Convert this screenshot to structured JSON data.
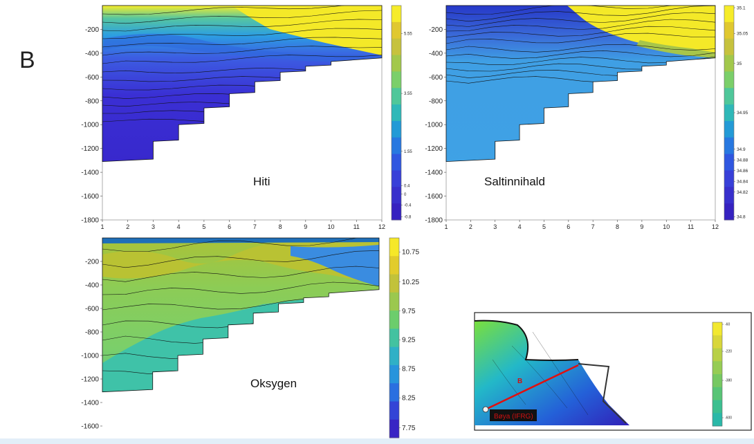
{
  "figure_label": "B",
  "chart_data": [
    {
      "type": "contour",
      "label": "Hiti",
      "x_ticks": [
        1,
        2,
        3,
        4,
        5,
        6,
        7,
        8,
        9,
        10,
        11,
        12
      ],
      "y_ticks": [
        -200,
        -400,
        -600,
        -800,
        -1000,
        -1200,
        -1400,
        -1600,
        -1800
      ],
      "xlim": [
        1,
        12
      ],
      "ylim": [
        -1800,
        0
      ],
      "bottom_depth": [
        {
          "x": 1,
          "depth": -1310
        },
        {
          "x": 3,
          "depth": -1290
        },
        {
          "x": 3,
          "depth": -1140
        },
        {
          "x": 4,
          "depth": -1130
        },
        {
          "x": 4,
          "depth": -1000
        },
        {
          "x": 5,
          "depth": -990
        },
        {
          "x": 5,
          "depth": -860
        },
        {
          "x": 6,
          "depth": -850
        },
        {
          "x": 6,
          "depth": -740
        },
        {
          "x": 7,
          "depth": -730
        },
        {
          "x": 7,
          "depth": -640
        },
        {
          "x": 8,
          "depth": -630
        },
        {
          "x": 8,
          "depth": -560
        },
        {
          "x": 9,
          "depth": -550
        },
        {
          "x": 9,
          "depth": -510
        },
        {
          "x": 10,
          "depth": -500
        },
        {
          "x": 10,
          "depth": -470
        },
        {
          "x": 12,
          "depth": -440
        }
      ],
      "colorbar_ticks": [
        "5.55",
        "3.55",
        "1.55",
        "0.4",
        "0",
        "-0.4",
        "-0.8"
      ]
    },
    {
      "type": "contour",
      "label": "Saltinnihald",
      "x_ticks": [
        1,
        2,
        3,
        4,
        5,
        6,
        7,
        8,
        9,
        10,
        11,
        12
      ],
      "y_ticks": [
        -200,
        -400,
        -600,
        -800,
        -1000,
        -1200,
        -1400,
        -1600,
        -1800
      ],
      "xlim": [
        1,
        12
      ],
      "ylim": [
        -1800,
        0
      ],
      "colorbar_ticks": [
        "35.1",
        "35.05",
        "35",
        "34.95",
        "34.9",
        "34.88",
        "34.86",
        "34.84",
        "34.82",
        "34.8"
      ]
    },
    {
      "type": "contour",
      "label": "Oksygen",
      "y_ticks": [
        -200,
        -400,
        -600,
        -800,
        -1000,
        -1200,
        -1400,
        -1600
      ],
      "colorbar_ticks": [
        "10.75",
        "10.25",
        "9.75",
        "9.25",
        "8.75",
        "8.25",
        "7.75"
      ]
    }
  ],
  "map": {
    "section_label": "B",
    "station_label": "Bøya (IFRG)",
    "colorbar_ticks": [
      "-60",
      "-220",
      "-380",
      "-600"
    ]
  }
}
